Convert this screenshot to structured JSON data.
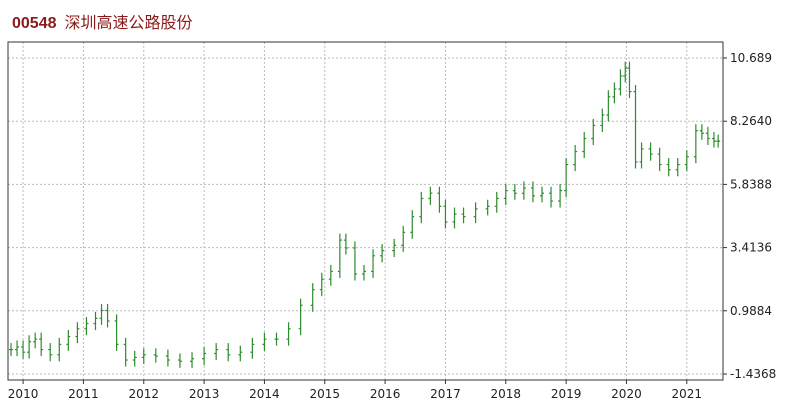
{
  "header": {
    "code": "00548",
    "name": "深圳高速公路股份"
  },
  "chart_data": {
    "type": "ohlc",
    "title": "00548 深圳高速公路股份",
    "xlabel": "",
    "ylabel": "",
    "x_ticks": [
      "2010",
      "2011",
      "2012",
      "2013",
      "2014",
      "2015",
      "2016",
      "2017",
      "2018",
      "2019",
      "2020",
      "2021"
    ],
    "y_ticks": [
      -1.4368,
      0.9884,
      3.4136,
      5.8388,
      8.264,
      10.689
    ],
    "y_tick_labels": [
      "-1.4368",
      "0.9884",
      "3.4136",
      "5.8388",
      "8.2640",
      "10.689"
    ],
    "ylim": [
      -1.4368,
      10.689
    ],
    "xlim": [
      2009.75,
      2021.6
    ],
    "grid": true,
    "bar_color": "#2e8b2e",
    "series": [
      {
        "points": [
          {
            "x": 2009.8,
            "y": -0.5
          },
          {
            "x": 2009.9,
            "y": -0.4
          },
          {
            "x": 2010.0,
            "y": -0.6
          },
          {
            "x": 2010.1,
            "y": -0.2
          },
          {
            "x": 2010.2,
            "y": -0.1
          },
          {
            "x": 2010.3,
            "y": -0.5
          },
          {
            "x": 2010.45,
            "y": -0.7
          },
          {
            "x": 2010.6,
            "y": -0.3
          },
          {
            "x": 2010.75,
            "y": 0.0
          },
          {
            "x": 2010.9,
            "y": 0.3
          },
          {
            "x": 2011.05,
            "y": 0.5
          },
          {
            "x": 2011.2,
            "y": 0.7
          },
          {
            "x": 2011.3,
            "y": 1.0
          },
          {
            "x": 2011.4,
            "y": 0.6
          },
          {
            "x": 2011.55,
            "y": -0.3
          },
          {
            "x": 2011.7,
            "y": -0.9
          },
          {
            "x": 2011.85,
            "y": -0.8
          },
          {
            "x": 2012.0,
            "y": -0.7
          },
          {
            "x": 2012.2,
            "y": -0.75
          },
          {
            "x": 2012.4,
            "y": -0.9
          },
          {
            "x": 2012.6,
            "y": -0.95
          },
          {
            "x": 2012.8,
            "y": -0.85
          },
          {
            "x": 2013.0,
            "y": -0.65
          },
          {
            "x": 2013.2,
            "y": -0.5
          },
          {
            "x": 2013.4,
            "y": -0.7
          },
          {
            "x": 2013.6,
            "y": -0.6
          },
          {
            "x": 2013.8,
            "y": -0.3
          },
          {
            "x": 2014.0,
            "y": -0.1
          },
          {
            "x": 2014.2,
            "y": -0.1
          },
          {
            "x": 2014.4,
            "y": 0.3
          },
          {
            "x": 2014.6,
            "y": 1.2
          },
          {
            "x": 2014.8,
            "y": 1.8
          },
          {
            "x": 2014.95,
            "y": 2.2
          },
          {
            "x": 2015.1,
            "y": 2.5
          },
          {
            "x": 2015.25,
            "y": 3.7
          },
          {
            "x": 2015.35,
            "y": 3.4
          },
          {
            "x": 2015.5,
            "y": 2.4
          },
          {
            "x": 2015.65,
            "y": 2.5
          },
          {
            "x": 2015.8,
            "y": 3.1
          },
          {
            "x": 2015.95,
            "y": 3.3
          },
          {
            "x": 2016.15,
            "y": 3.5
          },
          {
            "x": 2016.3,
            "y": 4.0
          },
          {
            "x": 2016.45,
            "y": 4.6
          },
          {
            "x": 2016.6,
            "y": 5.3
          },
          {
            "x": 2016.75,
            "y": 5.5
          },
          {
            "x": 2016.9,
            "y": 5.0
          },
          {
            "x": 2017.0,
            "y": 4.4
          },
          {
            "x": 2017.15,
            "y": 4.7
          },
          {
            "x": 2017.3,
            "y": 4.6
          },
          {
            "x": 2017.5,
            "y": 4.9
          },
          {
            "x": 2017.7,
            "y": 5.0
          },
          {
            "x": 2017.85,
            "y": 5.3
          },
          {
            "x": 2018.0,
            "y": 5.6
          },
          {
            "x": 2018.15,
            "y": 5.5
          },
          {
            "x": 2018.3,
            "y": 5.7
          },
          {
            "x": 2018.45,
            "y": 5.4
          },
          {
            "x": 2018.6,
            "y": 5.5
          },
          {
            "x": 2018.75,
            "y": 5.2
          },
          {
            "x": 2018.9,
            "y": 5.6
          },
          {
            "x": 2019.0,
            "y": 6.6
          },
          {
            "x": 2019.15,
            "y": 7.1
          },
          {
            "x": 2019.3,
            "y": 7.6
          },
          {
            "x": 2019.45,
            "y": 8.1
          },
          {
            "x": 2019.6,
            "y": 8.5
          },
          {
            "x": 2019.7,
            "y": 9.2
          },
          {
            "x": 2019.8,
            "y": 9.5
          },
          {
            "x": 2019.9,
            "y": 10.0
          },
          {
            "x": 2019.98,
            "y": 10.3
          },
          {
            "x": 2020.05,
            "y": 9.4
          },
          {
            "x": 2020.15,
            "y": 6.7
          },
          {
            "x": 2020.25,
            "y": 7.2
          },
          {
            "x": 2020.4,
            "y": 7.0
          },
          {
            "x": 2020.55,
            "y": 6.6
          },
          {
            "x": 2020.7,
            "y": 6.4
          },
          {
            "x": 2020.85,
            "y": 6.6
          },
          {
            "x": 2021.0,
            "y": 6.9
          },
          {
            "x": 2021.15,
            "y": 7.9
          },
          {
            "x": 2021.25,
            "y": 7.8
          },
          {
            "x": 2021.35,
            "y": 7.6
          },
          {
            "x": 2021.45,
            "y": 7.5
          },
          {
            "x": 2021.52,
            "y": 7.5
          }
        ]
      }
    ]
  }
}
